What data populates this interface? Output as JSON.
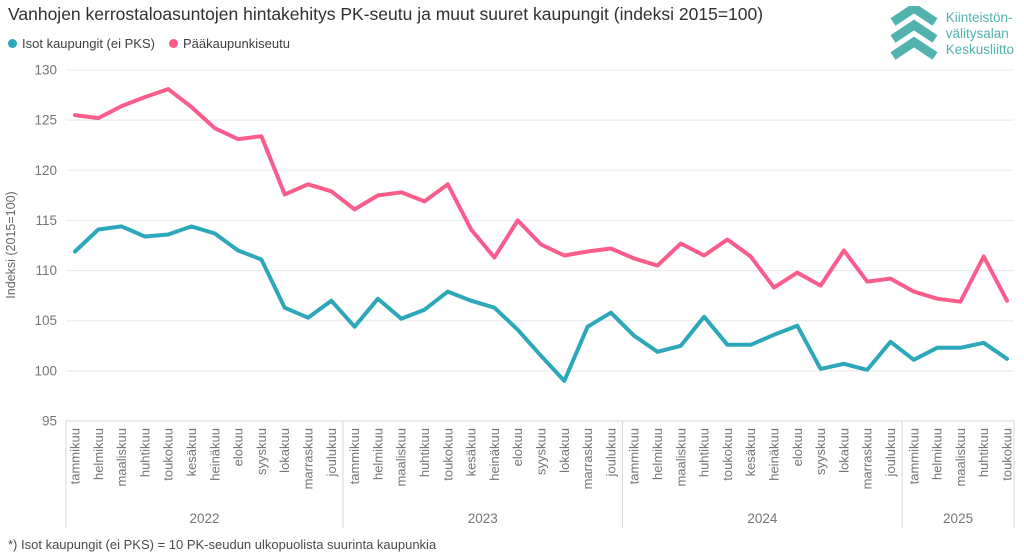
{
  "title": "Vanhojen kerrostaloasuntojen hintakehitys PK-seutu ja muut suuret kaupungit (indeksi 2015=100)",
  "footnote": "*) Isot kaupungit (ei PKS) = 10 PK-seudun ulkopuolista suurinta kaupunkia",
  "legend": {
    "items": [
      {
        "label": "Isot kaupungit (ei PKS)",
        "color": "#2da7ba"
      },
      {
        "label": "Pääkaupunkiseutu",
        "color": "#fa5c8c"
      }
    ]
  },
  "logo": {
    "lines": [
      "Kiinteistön-",
      "välitysalan",
      "Keskusliitto"
    ],
    "color": "#52b2b0"
  },
  "colors": {
    "title_text": "#303030",
    "axis_text": "#757575",
    "gridline": "#e8e8e8",
    "axis_line": "#d9d9d9",
    "teal_series": "#2da7ba",
    "pink_series": "#fa5c8c"
  },
  "chart_data": {
    "type": "line",
    "title": "Vanhojen kerrostaloasuntojen hintakehitys PK-seutu ja muut suuret kaupungit (indeksi 2015=100)",
    "xlabel": "",
    "ylabel": "Indeksi (2015=100)",
    "ylim": [
      95,
      130
    ],
    "ytick_step": 5,
    "yticks": [
      95,
      100,
      105,
      110,
      115,
      120,
      125,
      130
    ],
    "grid": true,
    "legend_position": "top-left",
    "years": [
      {
        "label": "2022",
        "months": [
          "tammikuu",
          "helmikuu",
          "maaliskuu",
          "huhtikuu",
          "toukokuu",
          "kesäkuu",
          "heinäkuu",
          "elokuu",
          "syyskuu",
          "lokakuu",
          "marraskuu",
          "joulukuu"
        ]
      },
      {
        "label": "2023",
        "months": [
          "tammikuu",
          "helmikuu",
          "maaliskuu",
          "huhtikuu",
          "toukokuu",
          "kesäkuu",
          "heinäkuu",
          "elokuu",
          "syyskuu",
          "lokakuu",
          "marraskuu",
          "joulukuu"
        ]
      },
      {
        "label": "2024",
        "months": [
          "tammikuu",
          "helmikuu",
          "maaliskuu",
          "huhtikuu",
          "toukokuu",
          "kesäkuu",
          "heinäkuu",
          "elokuu",
          "syyskuu",
          "lokakuu",
          "marraskuu",
          "joulukuu"
        ]
      },
      {
        "label": "2025",
        "months": [
          "tammikuu",
          "helmikuu",
          "maaliskuu",
          "huhtikuu",
          "toukokuu"
        ]
      }
    ],
    "series": [
      {
        "name": "Isot kaupungit (ei PKS)",
        "color": "#2da7ba",
        "values": [
          111.9,
          114.1,
          114.4,
          113.4,
          113.6,
          114.4,
          113.7,
          112.0,
          111.1,
          106.3,
          105.3,
          107.0,
          104.4,
          107.2,
          105.2,
          106.1,
          107.9,
          107.0,
          106.3,
          104.1,
          101.5,
          99.0,
          104.4,
          105.8,
          103.5,
          101.9,
          102.5,
          105.4,
          102.6,
          102.6,
          103.6,
          104.5,
          100.2,
          100.7,
          100.1,
          102.9,
          101.1,
          102.3,
          102.3,
          102.8,
          101.2
        ]
      },
      {
        "name": "Pääkaupunkiseutu",
        "color": "#fa5c8c",
        "values": [
          125.5,
          125.2,
          126.4,
          127.3,
          128.1,
          126.3,
          124.2,
          123.1,
          123.4,
          117.6,
          118.6,
          117.9,
          116.1,
          117.5,
          117.8,
          116.9,
          118.6,
          114.1,
          111.3,
          115.0,
          112.6,
          111.5,
          111.9,
          112.2,
          111.2,
          110.5,
          112.7,
          111.5,
          113.1,
          111.4,
          108.3,
          109.8,
          108.5,
          112.0,
          108.9,
          109.2,
          107.9,
          107.2,
          106.9,
          111.4,
          107.0
        ]
      }
    ]
  }
}
